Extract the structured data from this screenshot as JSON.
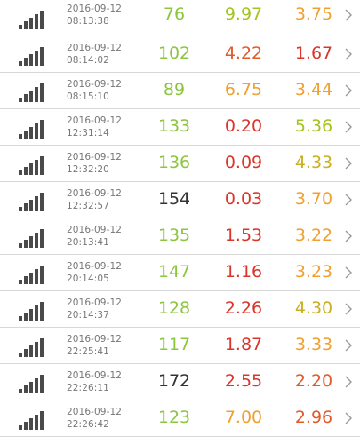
{
  "rows": [
    {
      "date": "2016-09-12",
      "time": "08:13:38",
      "v1": "76",
      "v1_color": "#8cc63f",
      "v2": "9.97",
      "v2_color": "#a3c41c",
      "v3": "3.75",
      "v3_color": "#f0a030"
    },
    {
      "date": "2016-09-12",
      "time": "08:14:02",
      "v1": "102",
      "v1_color": "#8cc63f",
      "v2": "4.22",
      "v2_color": "#e05a2a",
      "v3": "1.67",
      "v3_color": "#d9352a"
    },
    {
      "date": "2016-09-12",
      "time": "08:15:10",
      "v1": "89",
      "v1_color": "#8cc63f",
      "v2": "6.75",
      "v2_color": "#f0a030",
      "v3": "3.44",
      "v3_color": "#f0a030"
    },
    {
      "date": "2016-09-12",
      "time": "12:31:14",
      "v1": "133",
      "v1_color": "#8cc63f",
      "v2": "0.20",
      "v2_color": "#d9352a",
      "v3": "5.36",
      "v3_color": "#a3c41c"
    },
    {
      "date": "2016-09-12",
      "time": "12:32:20",
      "v1": "136",
      "v1_color": "#8cc63f",
      "v2": "0.09",
      "v2_color": "#d9352a",
      "v3": "4.33",
      "v3_color": "#c9b020"
    },
    {
      "date": "2016-09-12",
      "time": "12:32:57",
      "v1": "154",
      "v1_color": "#333333",
      "v2": "0.03",
      "v2_color": "#d9352a",
      "v3": "3.70",
      "v3_color": "#f0a030"
    },
    {
      "date": "2016-09-12",
      "time": "20:13:41",
      "v1": "135",
      "v1_color": "#8cc63f",
      "v2": "1.53",
      "v2_color": "#d9352a",
      "v3": "3.22",
      "v3_color": "#f0a030"
    },
    {
      "date": "2016-09-12",
      "time": "20:14:05",
      "v1": "147",
      "v1_color": "#8cc63f",
      "v2": "1.16",
      "v2_color": "#d9352a",
      "v3": "3.23",
      "v3_color": "#f0a030"
    },
    {
      "date": "2016-09-12",
      "time": "20:14:37",
      "v1": "128",
      "v1_color": "#8cc63f",
      "v2": "2.26",
      "v2_color": "#d9352a",
      "v3": "4.30",
      "v3_color": "#c9b020"
    },
    {
      "date": "2016-09-12",
      "time": "22:25:41",
      "v1": "117",
      "v1_color": "#8cc63f",
      "v2": "1.87",
      "v2_color": "#d9352a",
      "v3": "3.33",
      "v3_color": "#f0a030"
    },
    {
      "date": "2016-09-12",
      "time": "22:26:11",
      "v1": "172",
      "v1_color": "#333333",
      "v2": "2.55",
      "v2_color": "#d9352a",
      "v3": "2.20",
      "v3_color": "#e05a2a"
    },
    {
      "date": "2016-09-12",
      "time": "22:26:42",
      "v1": "123",
      "v1_color": "#8cc63f",
      "v2": "7.00",
      "v2_color": "#f0a030",
      "v3": "2.96",
      "v3_color": "#e05a2a"
    }
  ],
  "icons": {
    "signal": "signal-strength-icon",
    "chevron": "chevron-right-icon"
  },
  "colors": {
    "divider": "#d8d8d8",
    "icon": "#4a4a4a",
    "timestamp": "#777777"
  }
}
